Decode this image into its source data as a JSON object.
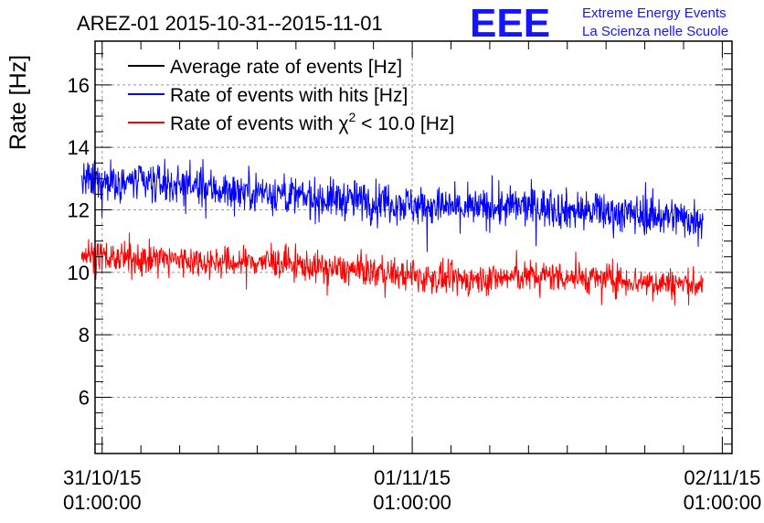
{
  "chart_data": {
    "type": "line",
    "title": "AREZ-01 2015-10-31--2015-11-01",
    "xlabel": "",
    "ylabel": "Rate [Hz]",
    "ylim": [
      4.2,
      17.4
    ],
    "xlim_hours": [
      -0.55,
      48.75
    ],
    "yticks": [
      6,
      8,
      10,
      12,
      14,
      16
    ],
    "xticks": [
      {
        "hour": 0,
        "date": "31/10/15",
        "time": "01:00:00"
      },
      {
        "hour": 24,
        "date": "01/11/15",
        "time": "01:00:00"
      },
      {
        "hour": 48,
        "date": "02/11/15",
        "time": "01:00:00"
      }
    ],
    "grid": true,
    "legend": "top-left",
    "legend_entries": [
      {
        "key": "avg",
        "label": "Average rate of events [Hz]"
      },
      {
        "key": "hits",
        "label": "Rate of events with hits [Hz]"
      },
      {
        "key": "chi",
        "label_prefix": "Rate of events with ",
        "label_symbol": "χ",
        "label_sup": "2",
        "label_suffix": " < 10.0 [Hz]"
      }
    ],
    "series": [
      {
        "name": "Average rate of events [Hz]",
        "color": "#000000",
        "x_hours": [],
        "values": []
      },
      {
        "name": "Rate of events with hits [Hz]",
        "color": "#0000ff",
        "x_hours": [
          -1.6,
          0.0,
          2.0,
          4.0,
          6.0,
          8.0,
          10.0,
          12.0,
          14.0,
          16.0,
          18.0,
          20.0,
          22.0,
          24.0,
          26.0,
          28.0,
          30.0,
          32.0,
          34.0,
          36.0,
          38.0,
          40.0,
          42.0,
          44.0,
          46.0,
          46.5
        ],
        "values": [
          12.9,
          12.9,
          12.9,
          12.85,
          12.8,
          12.7,
          12.6,
          12.6,
          12.5,
          12.35,
          12.35,
          12.3,
          12.3,
          12.15,
          12.1,
          12.05,
          12.05,
          12.1,
          12.1,
          12.0,
          11.95,
          11.9,
          11.85,
          11.8,
          11.7,
          11.8
        ],
        "noise": 0.45
      },
      {
        "name": "Rate of events with χ2 < 10.0 [Hz]",
        "color": "#ff0000",
        "x_hours": [
          -1.6,
          0.0,
          2.0,
          4.0,
          6.0,
          8.0,
          10.0,
          12.0,
          14.0,
          16.0,
          18.0,
          20.0,
          22.0,
          24.0,
          26.0,
          28.0,
          30.0,
          32.0,
          34.0,
          36.0,
          38.0,
          40.0,
          42.0,
          44.0,
          46.0,
          46.5
        ],
        "values": [
          10.6,
          10.5,
          10.4,
          10.45,
          10.4,
          10.35,
          10.3,
          10.35,
          10.3,
          10.2,
          10.1,
          10.05,
          10.0,
          9.85,
          9.8,
          9.75,
          9.8,
          9.85,
          9.9,
          9.85,
          9.8,
          9.75,
          9.7,
          9.65,
          9.6,
          9.7
        ],
        "noise": 0.35
      }
    ]
  },
  "logo": {
    "mark": "EEE",
    "line1": "Extreme Energy Events",
    "line2": "La Scienza nelle Scuole",
    "color": "#1414ff"
  }
}
